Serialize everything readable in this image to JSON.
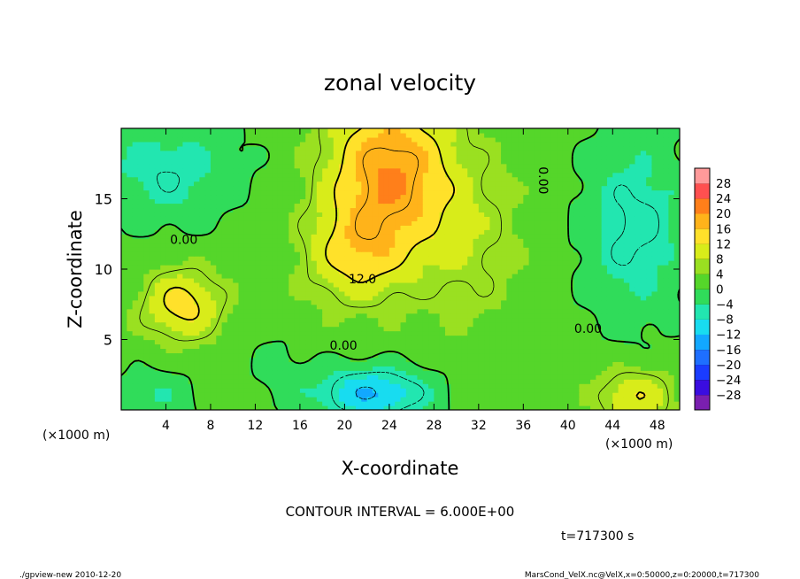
{
  "chart_data": {
    "type": "heatmap",
    "title": "zonal velocity",
    "xlabel": "X-coordinate",
    "ylabel": "Z-coordinate",
    "x_unit_left": "(×1000 m)",
    "x_unit_right": "(×1000 m)",
    "xlim": [
      0,
      50
    ],
    "ylim": [
      0,
      20
    ],
    "x_ticks": [
      4,
      8,
      12,
      16,
      20,
      24,
      28,
      32,
      36,
      40,
      44,
      48
    ],
    "x_tick_labels": [
      "4",
      "8",
      "12",
      "16",
      "20",
      "24",
      "28",
      "32",
      "36",
      "40",
      "44",
      "48"
    ],
    "y_ticks": [
      5,
      10,
      15
    ],
    "y_tick_labels": [
      "5",
      "10",
      "15"
    ],
    "colorbar": {
      "levels": [
        -32,
        -28,
        -24,
        -20,
        -16,
        -12,
        -8,
        -4,
        0,
        4,
        8,
        12,
        16,
        20,
        24,
        28,
        32
      ],
      "labels": [
        "28",
        "24",
        "20",
        "16",
        "12",
        "8",
        "4",
        "0",
        "−4",
        "−8",
        "−12",
        "−16",
        "−20",
        "−24",
        "−28"
      ],
      "label_values": [
        28,
        24,
        20,
        16,
        12,
        8,
        4,
        0,
        -4,
        -8,
        -12,
        -16,
        -20,
        -24,
        -28
      ],
      "colors": [
        "#7a1fb0",
        "#3a0de0",
        "#1a3cff",
        "#1e6fff",
        "#12a8ff",
        "#18dcf0",
        "#22e6b0",
        "#30dc5a",
        "#55d62a",
        "#9ae021",
        "#d8ec1a",
        "#ffe12a",
        "#ffb31a",
        "#ff7f1a",
        "#ff5050",
        "#ff9a9a"
      ]
    },
    "contour_interval": 6,
    "contour_labels": [
      {
        "text": "0.00",
        "x": 5.6,
        "z": 12.1
      },
      {
        "text": "12.0",
        "x": 21.6,
        "z": 9.3
      },
      {
        "text": "0.00",
        "x": 19.9,
        "z": 4.6
      },
      {
        "text": "0.00",
        "x": 37.8,
        "z": 16.3
      },
      {
        "text": "0.00",
        "x": 41.8,
        "z": 5.8
      }
    ],
    "field_features": [
      {
        "kind": "max",
        "x": 24,
        "z": 17,
        "sx": 5.5,
        "sz": 5.5,
        "value": 18
      },
      {
        "kind": "max",
        "x": 21,
        "z": 11,
        "sx": 4.5,
        "sz": 3.5,
        "value": 10
      },
      {
        "kind": "max",
        "x": 5.5,
        "z": 7.5,
        "sx": 3.5,
        "sz": 2.5,
        "value": 12
      },
      {
        "kind": "max",
        "x": 46,
        "z": 1,
        "sx": 3.5,
        "sz": 2,
        "value": 10
      },
      {
        "kind": "max",
        "x": 31,
        "z": 12,
        "sx": 5,
        "sz": 6,
        "value": 5
      },
      {
        "kind": "min",
        "x": 22.5,
        "z": 1.2,
        "sx": 5.5,
        "sz": 2,
        "value": -14
      },
      {
        "kind": "min",
        "x": 46,
        "z": 13,
        "sx": 5,
        "sz": 7,
        "value": -9
      },
      {
        "kind": "min",
        "x": 4,
        "z": 17,
        "sx": 7,
        "sz": 4,
        "value": -8
      },
      {
        "kind": "min",
        "x": 14,
        "z": 3,
        "sx": 3,
        "sz": 3,
        "value": -3
      },
      {
        "kind": "min",
        "x": 3,
        "z": 1,
        "sx": 4,
        "sz": 2,
        "value": -6
      }
    ]
  },
  "footer": {
    "contour_interval_text": "CONTOUR INTERVAL = 6.000E+00",
    "time_text": "t=717300 s",
    "program_text": "./gpview-new   2010-12-20",
    "source_text": "MarsCond_VelX.nc@VelX,x=0:50000,z=0:20000,t=717300"
  }
}
